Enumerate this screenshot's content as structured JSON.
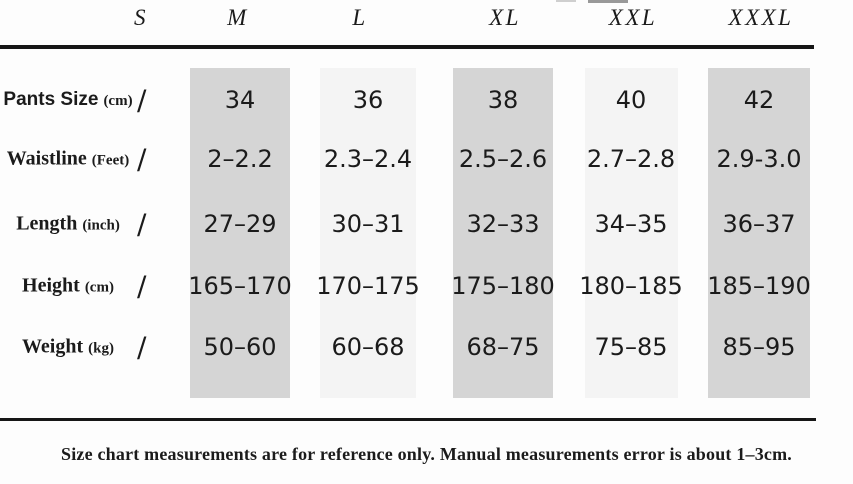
{
  "colors": {
    "column_dark": "#d5d5d5",
    "column_light": "#f4f4f4",
    "divider": "#161616",
    "ink": "#1b1b1b"
  },
  "chart_data": {
    "type": "table",
    "title": "",
    "columns": [
      "S",
      "M",
      "L",
      "XL",
      "XXL",
      "XXXL"
    ],
    "rows": [
      {
        "label": "Pants Size",
        "unit": "(cm)",
        "s_value": "/",
        "values": [
          "34",
          "36",
          "38",
          "40",
          "42"
        ]
      },
      {
        "label": "Waistline",
        "unit": "(Feet)",
        "s_value": "/",
        "values": [
          "2–2.2",
          "2.3–2.4",
          "2.5–2.6",
          "2.7–2.8",
          "2.9-3.0"
        ]
      },
      {
        "label": "Length",
        "unit": "(inch)",
        "s_value": "/",
        "values": [
          "27–29",
          "30–31",
          "32–33",
          "34–35",
          "36–37"
        ]
      },
      {
        "label": "Height",
        "unit": "(cm)",
        "s_value": "/",
        "values": [
          "165–170",
          "170–175",
          "175–180",
          "180–185",
          "185–190"
        ]
      },
      {
        "label": "Weight",
        "unit": "(kg)",
        "s_value": "/",
        "values": [
          "50–60",
          "60–68",
          "68–75",
          "75–85",
          "85–95"
        ]
      }
    ],
    "note": "Size chart measurements are for reference only. Manual measurements error is about 1–3cm."
  }
}
